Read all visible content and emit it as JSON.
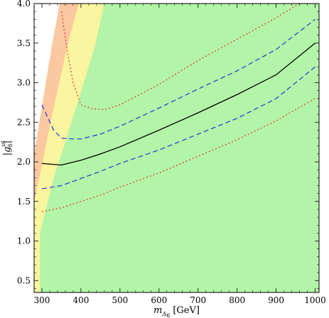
{
  "chart_data": {
    "type": "area",
    "xlabel": "m_Δ6 [GeV]",
    "ylabel": "|g_6^ut|",
    "xlim": [
      280,
      1010
    ],
    "ylim": [
      0.35,
      4.0
    ],
    "x_ticks": [
      300,
      400,
      500,
      600,
      700,
      800,
      900,
      1000
    ],
    "y_ticks": [
      0.5,
      1.0,
      1.5,
      2.0,
      2.5,
      3.0,
      3.5,
      4.0
    ],
    "x_tick_labels": [
      "300",
      "400",
      "500",
      "600",
      "700",
      "800",
      "900",
      "1000"
    ],
    "y_tick_labels": [
      "0.5",
      "1.0",
      "1.5",
      "2.0",
      "2.5",
      "3.0",
      "3.5",
      "4.0"
    ],
    "regions": [
      {
        "name": "green",
        "color": "#b3f5a8",
        "boundary": [
          [
            295,
            1.1
          ],
          [
            330,
            1.8
          ],
          [
            360,
            2.25
          ],
          [
            385,
            2.65
          ],
          [
            410,
            3.05
          ],
          [
            435,
            3.45
          ],
          [
            460,
            4.0
          ]
        ]
      },
      {
        "name": "yellow",
        "color": "#fbf5a0",
        "boundary": [
          [
            280,
            1.5
          ],
          [
            300,
            1.95
          ],
          [
            320,
            2.45
          ],
          [
            340,
            2.9
          ],
          [
            360,
            3.35
          ],
          [
            380,
            3.75
          ],
          [
            395,
            4.0
          ]
        ]
      },
      {
        "name": "orange",
        "color": "#fcc8a0",
        "boundary": [
          [
            280,
            2.1
          ],
          [
            295,
            2.55
          ],
          [
            310,
            3.0
          ],
          [
            325,
            3.45
          ],
          [
            340,
            3.85
          ],
          [
            345,
            4.0
          ]
        ]
      }
    ],
    "series": [
      {
        "style": "solid",
        "color": "#000000",
        "x": [
          300,
          350,
          400,
          450,
          500,
          600,
          700,
          800,
          900,
          1000
        ],
        "y": [
          1.98,
          1.96,
          2.02,
          2.1,
          2.19,
          2.4,
          2.62,
          2.85,
          3.1,
          3.5
        ]
      },
      {
        "style": "dashed",
        "color": "#2233dd",
        "x": [
          300,
          330,
          350,
          380,
          400,
          450,
          500,
          600,
          700,
          800,
          900,
          1000
        ],
        "y": [
          2.72,
          2.4,
          2.3,
          2.29,
          2.29,
          2.35,
          2.45,
          2.68,
          2.92,
          3.15,
          3.42,
          3.8
        ]
      },
      {
        "style": "dashed",
        "color": "#2233dd",
        "x": [
          300,
          350,
          400,
          450,
          500,
          600,
          700,
          800,
          900,
          1000
        ],
        "y": [
          1.66,
          1.7,
          1.79,
          1.88,
          1.98,
          2.15,
          2.35,
          2.55,
          2.8,
          3.2
        ]
      },
      {
        "style": "dotted",
        "color": "#dd3333",
        "x": [
          350,
          365,
          380,
          400,
          430,
          460,
          500,
          600,
          700,
          800,
          900,
          960
        ],
        "y": [
          3.9,
          3.4,
          3.0,
          2.72,
          2.67,
          2.66,
          2.72,
          2.98,
          3.28,
          3.55,
          3.82,
          4.0
        ]
      },
      {
        "style": "dotted",
        "color": "#dd3333",
        "x": [
          300,
          350,
          400,
          450,
          500,
          600,
          700,
          800,
          900,
          1000
        ],
        "y": [
          1.37,
          1.42,
          1.5,
          1.58,
          1.68,
          1.86,
          2.07,
          2.28,
          2.52,
          2.8
        ]
      }
    ],
    "grid": false,
    "legend": "none"
  }
}
